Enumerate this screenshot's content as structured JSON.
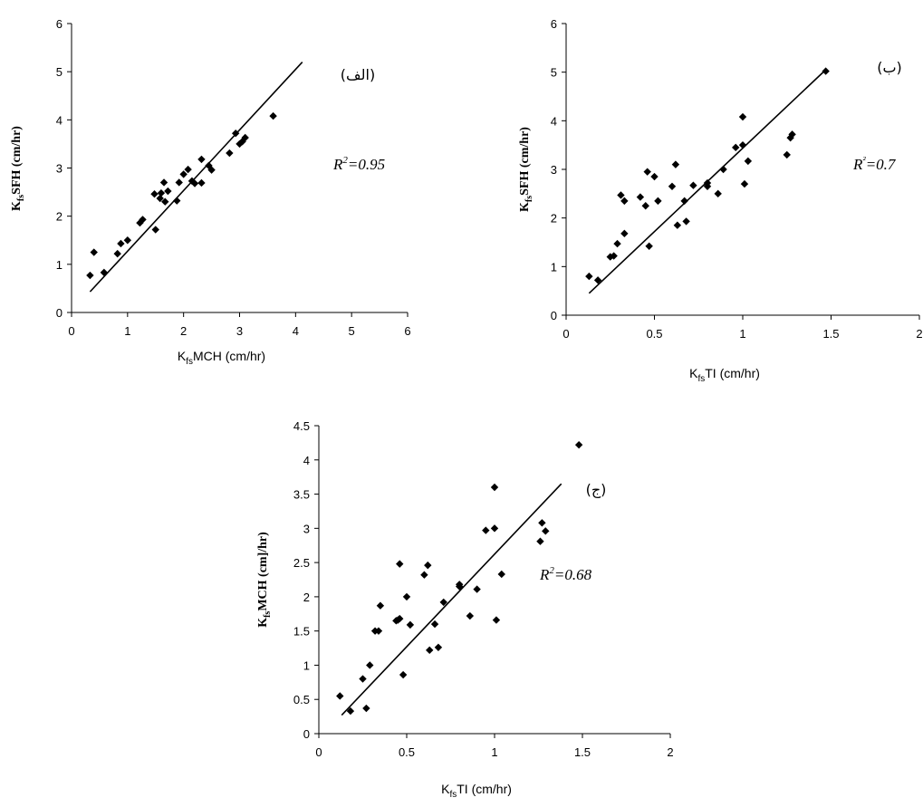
{
  "chart_data": [
    {
      "type": "scatter",
      "panel_label": "(الف)",
      "r2_label": "R",
      "r2_sup": "2",
      "r2_value": "=0.95",
      "xlabel": {
        "base": "K",
        "sub": "fs",
        "text": "MCH (cm/hr)"
      },
      "ylabel": {
        "base": "K",
        "sub": "fs",
        "text": "SFH (cm/hr)"
      },
      "xlim": [
        0,
        6
      ],
      "ylim": [
        0,
        6
      ],
      "xticks": [
        "0",
        "1",
        "2",
        "3",
        "4",
        "5",
        "6"
      ],
      "yticks": [
        "0",
        "1",
        "2",
        "3",
        "4",
        "5",
        "6"
      ],
      "fit_line": {
        "x": [
          0.33,
          4.12
        ],
        "y": [
          0.43,
          5.2
        ]
      },
      "points": [
        [
          0.33,
          0.77
        ],
        [
          0.4,
          1.25
        ],
        [
          0.58,
          0.83
        ],
        [
          0.82,
          1.22
        ],
        [
          0.88,
          1.43
        ],
        [
          1.0,
          1.5
        ],
        [
          1.22,
          1.86
        ],
        [
          1.27,
          1.93
        ],
        [
          1.48,
          2.46
        ],
        [
          1.5,
          1.72
        ],
        [
          1.58,
          2.37
        ],
        [
          1.6,
          2.48
        ],
        [
          1.65,
          2.7
        ],
        [
          1.67,
          2.3
        ],
        [
          1.72,
          2.52
        ],
        [
          1.88,
          2.32
        ],
        [
          1.92,
          2.7
        ],
        [
          2.0,
          2.87
        ],
        [
          2.08,
          2.97
        ],
        [
          2.15,
          2.73
        ],
        [
          2.2,
          2.68
        ],
        [
          2.32,
          2.69
        ],
        [
          2.32,
          3.18
        ],
        [
          2.45,
          3.05
        ],
        [
          2.5,
          2.96
        ],
        [
          2.82,
          3.31
        ],
        [
          2.93,
          3.72
        ],
        [
          3.0,
          3.5
        ],
        [
          3.05,
          3.55
        ],
        [
          3.1,
          3.63
        ],
        [
          3.6,
          4.08
        ]
      ]
    },
    {
      "type": "scatter",
      "panel_label": "(ب)",
      "r2_label": "R",
      "r2_sup": "²",
      "r2_value": "=0.7",
      "xlabel": {
        "base": "K",
        "sub": "fs",
        "text": "TI (cm/hr)"
      },
      "ylabel": {
        "base": "K",
        "sub": "fs",
        "text": "SFH (cm/hr)"
      },
      "xlim": [
        0,
        2
      ],
      "ylim": [
        0,
        6
      ],
      "xticks": [
        "0",
        "0.5",
        "1",
        "1.5",
        "2"
      ],
      "yticks": [
        "0",
        "1",
        "2",
        "3",
        "4",
        "5",
        "6"
      ],
      "fit_line": {
        "x": [
          0.13,
          1.47
        ],
        "y": [
          0.45,
          5.05
        ]
      },
      "points": [
        [
          0.13,
          0.8
        ],
        [
          0.18,
          0.72
        ],
        [
          0.25,
          1.2
        ],
        [
          0.27,
          1.22
        ],
        [
          0.29,
          1.47
        ],
        [
          0.31,
          2.47
        ],
        [
          0.33,
          1.68
        ],
        [
          0.33,
          2.35
        ],
        [
          0.42,
          2.43
        ],
        [
          0.45,
          2.25
        ],
        [
          0.46,
          2.95
        ],
        [
          0.47,
          1.42
        ],
        [
          0.5,
          2.85
        ],
        [
          0.52,
          2.35
        ],
        [
          0.6,
          2.65
        ],
        [
          0.62,
          3.1
        ],
        [
          0.63,
          1.85
        ],
        [
          0.67,
          2.35
        ],
        [
          0.68,
          1.93
        ],
        [
          0.72,
          2.67
        ],
        [
          0.8,
          2.72
        ],
        [
          0.8,
          2.65
        ],
        [
          0.86,
          2.5
        ],
        [
          0.89,
          3.0
        ],
        [
          0.96,
          3.45
        ],
        [
          1.0,
          4.08
        ],
        [
          1.0,
          3.5
        ],
        [
          1.01,
          2.7
        ],
        [
          1.03,
          3.17
        ],
        [
          1.25,
          3.3
        ],
        [
          1.27,
          3.65
        ],
        [
          1.28,
          3.72
        ],
        [
          1.47,
          5.02
        ]
      ]
    },
    {
      "type": "scatter",
      "panel_label": "(ج)",
      "r2_label": "R",
      "r2_sup": "2",
      "r2_value": "=0.68",
      "xlabel": {
        "base": "K",
        "sub": "fs",
        "text": "TI (cm/hr)"
      },
      "ylabel": {
        "base": "K",
        "sub": "fs",
        "text": "MCH (cm]/hr)"
      },
      "xlim": [
        0,
        2
      ],
      "ylim": [
        0,
        4.5
      ],
      "xticks": [
        "0",
        "0.5",
        "1",
        "1.5",
        "2"
      ],
      "yticks": [
        "0",
        "0.5",
        "1",
        "1.5",
        "2",
        "2.5",
        "3",
        "3.5",
        "4",
        "4.5"
      ],
      "fit_line": {
        "x": [
          0.13,
          1.38
        ],
        "y": [
          0.27,
          3.65
        ]
      },
      "points": [
        [
          0.12,
          0.55
        ],
        [
          0.18,
          0.33
        ],
        [
          0.25,
          0.8
        ],
        [
          0.27,
          0.37
        ],
        [
          0.29,
          1.0
        ],
        [
          0.32,
          1.5
        ],
        [
          0.34,
          1.5
        ],
        [
          0.35,
          1.87
        ],
        [
          0.44,
          1.65
        ],
        [
          0.45,
          1.66
        ],
        [
          0.46,
          1.68
        ],
        [
          0.46,
          2.48
        ],
        [
          0.48,
          0.86
        ],
        [
          0.5,
          2.0
        ],
        [
          0.52,
          1.59
        ],
        [
          0.6,
          2.32
        ],
        [
          0.62,
          2.46
        ],
        [
          0.63,
          1.22
        ],
        [
          0.66,
          1.6
        ],
        [
          0.68,
          1.26
        ],
        [
          0.71,
          1.92
        ],
        [
          0.8,
          2.15
        ],
        [
          0.8,
          2.18
        ],
        [
          0.86,
          1.72
        ],
        [
          0.9,
          2.11
        ],
        [
          0.95,
          2.97
        ],
        [
          1.0,
          3.0
        ],
        [
          1.0,
          3.6
        ],
        [
          1.01,
          1.66
        ],
        [
          1.04,
          2.33
        ],
        [
          1.26,
          2.81
        ],
        [
          1.27,
          3.08
        ],
        [
          1.29,
          2.96
        ],
        [
          1.48,
          4.22
        ]
      ]
    }
  ]
}
